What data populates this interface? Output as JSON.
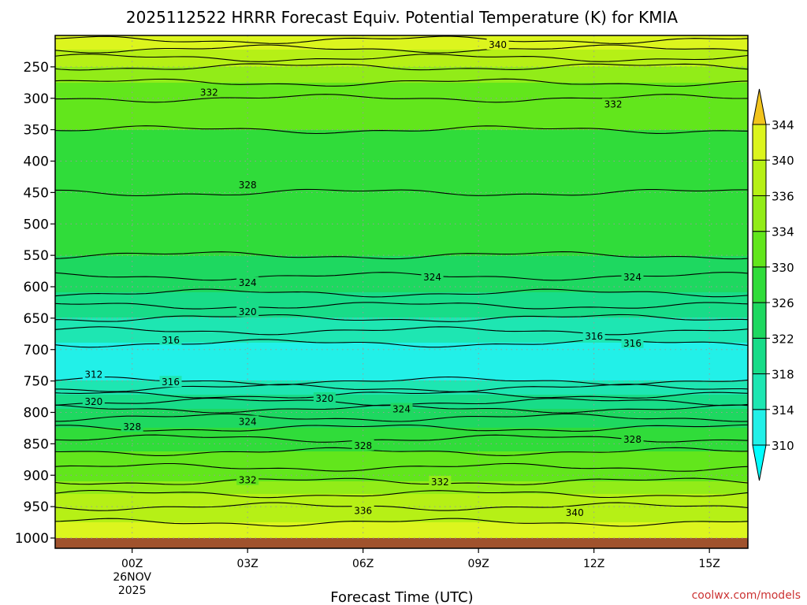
{
  "chart_data": {
    "type": "heatmap",
    "title": "2025112522 HRRR Forecast Equiv. Potential Temperature (K) for KMIA",
    "xlabel": "Forecast Time (UTC)",
    "ylabel": "",
    "credit": "coolwx.com/models",
    "x_range_hours": [
      -2,
      16
    ],
    "y_range_hPa": [
      1000,
      200
    ],
    "x_ticks": [
      {
        "hour": 0,
        "label": "00Z",
        "sub1": "26NOV",
        "sub2": "2025"
      },
      {
        "hour": 3,
        "label": "03Z",
        "sub1": "",
        "sub2": ""
      },
      {
        "hour": 6,
        "label": "06Z",
        "sub1": "",
        "sub2": ""
      },
      {
        "hour": 9,
        "label": "09Z",
        "sub1": "",
        "sub2": ""
      },
      {
        "hour": 12,
        "label": "12Z",
        "sub1": "",
        "sub2": ""
      },
      {
        "hour": 15,
        "label": "15Z",
        "sub1": "",
        "sub2": ""
      }
    ],
    "y_ticks": [
      {
        "p": 250,
        "label": "250"
      },
      {
        "p": 300,
        "label": "300"
      },
      {
        "p": 350,
        "label": "350"
      },
      {
        "p": 400,
        "label": "400"
      },
      {
        "p": 450,
        "label": "450"
      },
      {
        "p": 500,
        "label": "500"
      },
      {
        "p": 550,
        "label": "550"
      },
      {
        "p": 600,
        "label": "600"
      },
      {
        "p": 650,
        "label": "650"
      },
      {
        "p": 700,
        "label": "700"
      },
      {
        "p": 750,
        "label": "750"
      },
      {
        "p": 800,
        "label": "800"
      },
      {
        "p": 850,
        "label": "850"
      },
      {
        "p": 900,
        "label": "900"
      },
      {
        "p": 950,
        "label": "950"
      },
      {
        "p": 1000,
        "label": "1000"
      }
    ],
    "colorbar": {
      "levels": [
        310,
        314,
        318,
        322,
        326,
        330,
        334,
        336,
        340,
        344
      ],
      "labels": [
        "310",
        "314",
        "318",
        "322",
        "326",
        "330",
        "334",
        "336",
        "340",
        "344"
      ],
      "colors": [
        "#22f0e8",
        "#1ee6b2",
        "#18dc88",
        "#1ed860",
        "#30dc3a",
        "#62e61c",
        "#92ec18",
        "#b6f016",
        "#dcf51e",
        "#f7f821",
        "#fffa00"
      ],
      "under_color": "#00ffff",
      "over_color": "#f2c41c"
    },
    "ground_color": "#a0522d",
    "profile_isentropes": [
      {
        "p": 1000,
        "theta": 342
      },
      {
        "p": 950,
        "theta": 338
      },
      {
        "p": 900,
        "theta": 333
      },
      {
        "p": 850,
        "theta": 329
      },
      {
        "p": 800,
        "theta": 323
      },
      {
        "p": 750,
        "theta": 314
      },
      {
        "p": 700,
        "theta": 313
      },
      {
        "p": 650,
        "theta": 318
      },
      {
        "p": 600,
        "theta": 323
      },
      {
        "p": 550,
        "theta": 326
      },
      {
        "p": 500,
        "theta": 327
      },
      {
        "p": 450,
        "theta": 328
      },
      {
        "p": 400,
        "theta": 329
      },
      {
        "p": 350,
        "theta": 330
      },
      {
        "p": 300,
        "theta": 332
      },
      {
        "p": 250,
        "theta": 336
      },
      {
        "p": 200,
        "theta": 343
      }
    ],
    "contour_labels": [
      {
        "text": "340",
        "hour": 9.5,
        "p": 215
      },
      {
        "text": "332",
        "hour": 2.0,
        "p": 291
      },
      {
        "text": "332",
        "hour": 12.5,
        "p": 310
      },
      {
        "text": "328",
        "hour": 3.0,
        "p": 438
      },
      {
        "text": "324",
        "hour": 3.0,
        "p": 594
      },
      {
        "text": "324",
        "hour": 7.8,
        "p": 585
      },
      {
        "text": "324",
        "hour": 13.0,
        "p": 585
      },
      {
        "text": "320",
        "hour": 3.0,
        "p": 640
      },
      {
        "text": "316",
        "hour": 1.0,
        "p": 685
      },
      {
        "text": "316",
        "hour": 12.0,
        "p": 679
      },
      {
        "text": "316",
        "hour": 13.0,
        "p": 690
      },
      {
        "text": "312",
        "hour": -1.0,
        "p": 740
      },
      {
        "text": "316",
        "hour": 1.0,
        "p": 752
      },
      {
        "text": "320",
        "hour": -1.0,
        "p": 783
      },
      {
        "text": "320",
        "hour": 5.0,
        "p": 778
      },
      {
        "text": "324",
        "hour": 3.0,
        "p": 815
      },
      {
        "text": "324",
        "hour": 7.0,
        "p": 795
      },
      {
        "text": "328",
        "hour": 0.0,
        "p": 823
      },
      {
        "text": "328",
        "hour": 6.0,
        "p": 853
      },
      {
        "text": "328",
        "hour": 13.0,
        "p": 843
      },
      {
        "text": "332",
        "hour": 3.0,
        "p": 908
      },
      {
        "text": "332",
        "hour": 8.0,
        "p": 911
      },
      {
        "text": "336",
        "hour": 6.0,
        "p": 957
      },
      {
        "text": "340",
        "hour": 11.5,
        "p": 960
      }
    ]
  }
}
